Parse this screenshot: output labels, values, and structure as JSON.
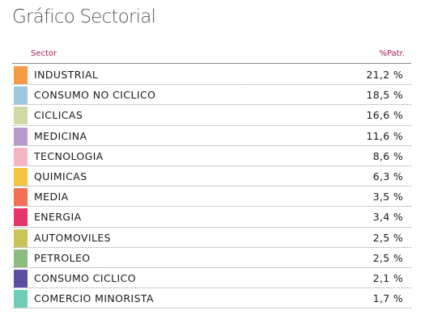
{
  "title": "Gráfico Sectorial",
  "table": {
    "header": {
      "sector": "Sector",
      "percent": "%Patr."
    },
    "rows": [
      {
        "sector": "INDUSTRIAL",
        "percent": "21,2 %",
        "color": "#f59a45"
      },
      {
        "sector": "CONSUMO NO CICLICO",
        "percent": "18,5 %",
        "color": "#9dc8dd"
      },
      {
        "sector": "CICLICAS",
        "percent": "16,6 %",
        "color": "#cfd9a8"
      },
      {
        "sector": "MEDICINA",
        "percent": "11,6 %",
        "color": "#b69ccc"
      },
      {
        "sector": "TECNOLOGIA",
        "percent": "8,6 %",
        "color": "#f6b5c2"
      },
      {
        "sector": "QUIMICAS",
        "percent": "6,3 %",
        "color": "#f5c342"
      },
      {
        "sector": "MEDIA",
        "percent": "3,5 %",
        "color": "#f27056"
      },
      {
        "sector": "ENERGIA",
        "percent": "3,4 %",
        "color": "#e4366b"
      },
      {
        "sector": "AUTOMOVILES",
        "percent": "2,5 %",
        "color": "#c7c45a"
      },
      {
        "sector": "PETROLEO",
        "percent": "2,5 %",
        "color": "#8cbd7f"
      },
      {
        "sector": "CONSUMO CICLICO",
        "percent": "2,1 %",
        "color": "#5a4ea1"
      },
      {
        "sector": "COMERCIO MINORISTA",
        "percent": "1,7 %",
        "color": "#6fcdb7"
      }
    ]
  }
}
